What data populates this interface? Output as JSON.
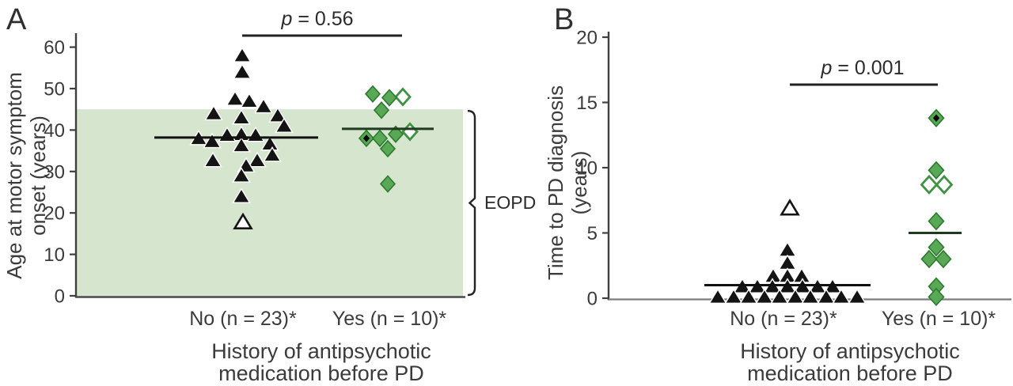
{
  "figure": {
    "background": "#ffffff",
    "panel_a": {
      "letter": "A",
      "p_italic": "p",
      "p_rest": " = 0.56",
      "y_label_line1": "Age at motor symptom",
      "y_label_line2": "onset (years)",
      "x_label_no": "No (n = 23)*",
      "x_label_yes": "Yes (n = 10)*",
      "x_title_line1": "History of antipsychotic",
      "x_title_line2": "medication before PD",
      "band_label": "EOPD"
    },
    "panel_b": {
      "letter": "B",
      "p_italic": "p",
      "p_rest": " = 0.001",
      "y_label_line1": "Time to PD diagnosis",
      "y_label_line2": "(years)",
      "x_label_no": "No (n = 23)*",
      "x_label_yes": "Yes (n = 10)*",
      "x_title_line1": "History of antipsychotic",
      "x_title_line2": "medication before PD"
    }
  },
  "colors": {
    "marker_black": "#141414",
    "marker_black_halo": "#ffffff",
    "marker_green": "#58a856",
    "marker_green_edge": "#2d7a2f",
    "open_marker_fill": "#ffffff",
    "open_green_edge": "#3f9243",
    "inner_dot_black": "#0a0a0a",
    "band_green": "#d6e5cd",
    "axis_dark": "#3f3f3f",
    "baseline_a": "#4a4a4a",
    "baseline_b": "#7d7d7d",
    "text": "#3b3b3b",
    "mean_line_no": "#111111",
    "mean_line_yes": "#1e3b1e",
    "p_line": "#222222",
    "bracket": "#222222"
  },
  "chart_data": [
    {
      "panel": "A",
      "type": "scatter",
      "ylabel": "Age at motor symptom onset (years)",
      "xlabel": "History of antipsychotic medication before PD",
      "ylim": [
        0,
        60
      ],
      "yticks": [
        0,
        10,
        20,
        30,
        40,
        50,
        60
      ],
      "categories": [
        "No (n = 23)*",
        "Yes (n = 10)*"
      ],
      "p_value": "p = 0.56",
      "legend": "none",
      "grid": false,
      "shaded_band": {
        "from": 0,
        "to": 45,
        "label": "EOPD"
      },
      "series": [
        {
          "name": "No (n = 23)*",
          "marker": "triangle",
          "n": 23,
          "mean_line": 38.2,
          "points": [
            [
              6,
              58
            ],
            [
              6,
              54
            ],
            [
              -3,
              47.5
            ],
            [
              15,
              47
            ],
            [
              33,
              45.7
            ],
            [
              -30,
              44
            ],
            [
              51,
              43.5
            ],
            [
              5,
              43
            ],
            [
              59,
              41
            ],
            [
              5,
              39
            ],
            [
              -13,
              38.8
            ],
            [
              23,
              38.8
            ],
            [
              -49,
              38
            ],
            [
              -32,
              37.3
            ],
            [
              41,
              36.7
            ],
            [
              5,
              36.3
            ],
            [
              44,
              34
            ],
            [
              -31,
              32.7
            ],
            [
              25,
              32.7
            ],
            [
              11,
              31.4
            ],
            [
              5,
              29
            ],
            [
              5,
              24
            ],
            [
              7,
              17.8,
              "open"
            ]
          ]
        },
        {
          "name": "Yes (n = 10)*",
          "marker": "diamond",
          "n": 10,
          "mean_line": 40.3,
          "points": [
            [
              -19,
              48.7
            ],
            [
              19,
              48,
              "open"
            ],
            [
              2,
              47.8
            ],
            [
              -8,
              44.8
            ],
            [
              28,
              39.6,
              "open"
            ],
            [
              10,
              39
            ],
            [
              -27,
              38,
              "dot"
            ],
            [
              -10,
              38
            ],
            [
              0,
              35.5
            ],
            [
              0,
              27
            ]
          ]
        }
      ]
    },
    {
      "panel": "B",
      "type": "scatter",
      "ylabel": "Time to PD diagnosis (years)",
      "xlabel": "History of antipsychotic medication before PD",
      "ylim": [
        0,
        20
      ],
      "yticks": [
        0,
        5,
        10,
        15,
        20
      ],
      "categories": [
        "No (n = 23)*",
        "Yes (n = 10)*"
      ],
      "p_value": "p = 0.001",
      "legend": "none",
      "grid": false,
      "series": [
        {
          "name": "No (n = 23)*",
          "marker": "triangle",
          "n": 23,
          "mean_line": 1,
          "points": [
            [
              3,
              6.9,
              "open"
            ],
            [
              0,
              3.7
            ],
            [
              0,
              2.7
            ],
            [
              -18,
              1.7
            ],
            [
              0,
              1.7
            ],
            [
              18,
              1.7
            ],
            [
              -57,
              0.9
            ],
            [
              -38,
              0.9
            ],
            [
              -19,
              0.9
            ],
            [
              0,
              0.9
            ],
            [
              19,
              0.9
            ],
            [
              38,
              0.9
            ],
            [
              57,
              0.9
            ],
            [
              -88,
              0.1
            ],
            [
              -68,
              0.1
            ],
            [
              -49,
              0.1
            ],
            [
              -29,
              0.1
            ],
            [
              -10,
              0.1
            ],
            [
              10,
              0.1
            ],
            [
              29,
              0.1
            ],
            [
              49,
              0.1
            ],
            [
              68,
              0.1
            ],
            [
              88,
              0.1
            ]
          ]
        },
        {
          "name": "Yes (n = 10)*",
          "marker": "diamond",
          "n": 10,
          "mean_line": 5,
          "points": [
            [
              0,
              13.8,
              "dot"
            ],
            [
              0,
              9.8
            ],
            [
              -9,
              8.7,
              "open"
            ],
            [
              10,
              8.7,
              "open"
            ],
            [
              0,
              5.9
            ],
            [
              0,
              3.9
            ],
            [
              -9,
              3
            ],
            [
              9,
              3
            ],
            [
              0,
              0.9
            ],
            [
              0,
              0.1
            ]
          ]
        }
      ]
    }
  ]
}
